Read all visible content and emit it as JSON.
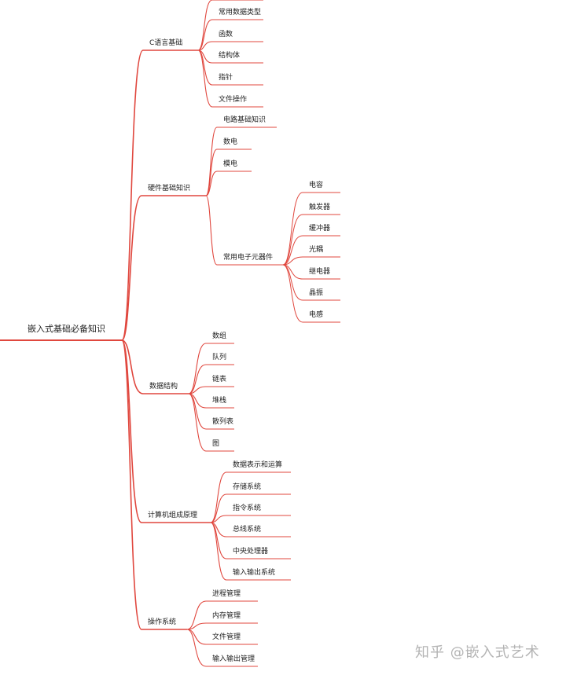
{
  "mindmap": {
    "line_color": "#e0473e",
    "root": "嵌入式基础必备知识",
    "branches": [
      {
        "label": "C语言基础",
        "children": [
          {
            "label": ""
          },
          {
            "label": "常用数据类型"
          },
          {
            "label": "函数"
          },
          {
            "label": "结构体"
          },
          {
            "label": "指针"
          },
          {
            "label": "文件操作"
          }
        ]
      },
      {
        "label": "硬件基础知识",
        "children": [
          {
            "label": "电路基础知识"
          },
          {
            "label": "数电"
          },
          {
            "label": "模电"
          },
          {
            "label": "常用电子元器件",
            "children": [
              {
                "label": "电容"
              },
              {
                "label": "触发器"
              },
              {
                "label": "缓冲器"
              },
              {
                "label": "光耦"
              },
              {
                "label": "继电器"
              },
              {
                "label": "晶振"
              },
              {
                "label": "电感"
              }
            ]
          }
        ]
      },
      {
        "label": "数据结构",
        "children": [
          {
            "label": "数组"
          },
          {
            "label": "队列"
          },
          {
            "label": "链表"
          },
          {
            "label": "堆栈"
          },
          {
            "label": "散列表"
          },
          {
            "label": "图"
          }
        ]
      },
      {
        "label": "计算机组成原理",
        "children": [
          {
            "label": "数据表示和运算"
          },
          {
            "label": "存储系统"
          },
          {
            "label": "指令系统"
          },
          {
            "label": "总线系统"
          },
          {
            "label": "中央处理器"
          },
          {
            "label": "输入输出系统"
          }
        ]
      },
      {
        "label": "操作系统",
        "children": [
          {
            "label": "进程管理"
          },
          {
            "label": "内存管理"
          },
          {
            "label": "文件管理"
          },
          {
            "label": "输入输出管理"
          }
        ]
      }
    ]
  },
  "watermark": "知乎 @嵌入式艺术"
}
